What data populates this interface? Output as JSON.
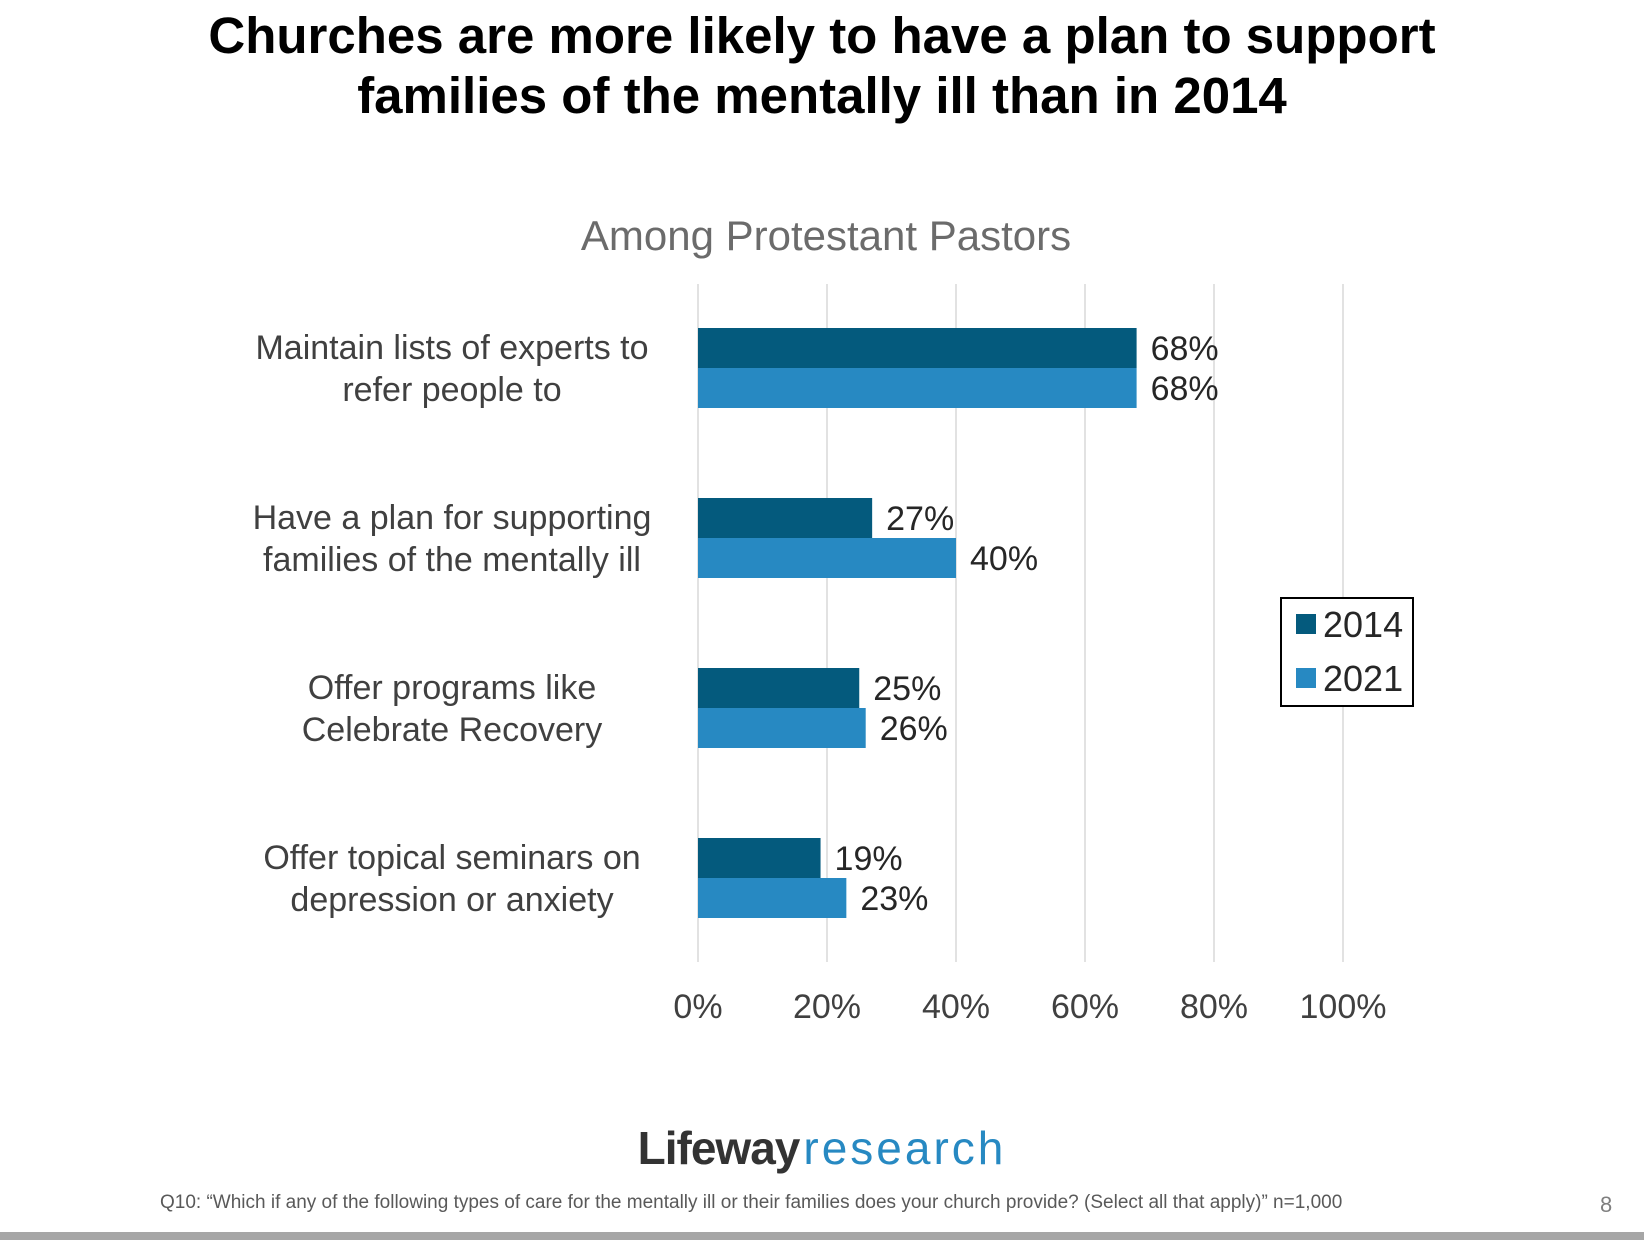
{
  "slide": {
    "title_line1": "Churches are more likely to have a plan to support",
    "title_line2": "families of the mentally ill than in 2014",
    "logo_part1": "Lifeway",
    "logo_part2": "research",
    "footnote": "Q10: “Which if any of the following types of care for the mentally ill or their families does your church provide? (Select all that apply)” n=1,000",
    "page_number": "8"
  },
  "chart_data": {
    "type": "bar",
    "orientation": "horizontal",
    "title": "Among Protestant Pastors",
    "categories": [
      [
        "Maintain lists of experts to",
        "refer people to"
      ],
      [
        "Have a plan for supporting",
        "families of the mentally ill"
      ],
      [
        "Offer programs like",
        "Celebrate Recovery"
      ],
      [
        "Offer topical seminars on",
        "depression or anxiety"
      ]
    ],
    "series": [
      {
        "name": "2014",
        "color": "#045a7d",
        "values": [
          68,
          27,
          25,
          19
        ],
        "labels": [
          "68%",
          "27%",
          "25%",
          "19%"
        ]
      },
      {
        "name": "2021",
        "color": "#2789c2",
        "values": [
          68,
          40,
          26,
          23
        ],
        "labels": [
          "68%",
          "40%",
          "26%",
          "23%"
        ]
      }
    ],
    "xlim": [
      0,
      100
    ],
    "xticks": [
      0,
      20,
      40,
      60,
      80,
      100
    ],
    "xtick_labels": [
      "0%",
      "20%",
      "40%",
      "60%",
      "80%",
      "100%"
    ],
    "grid": true,
    "legend_position": "right"
  }
}
